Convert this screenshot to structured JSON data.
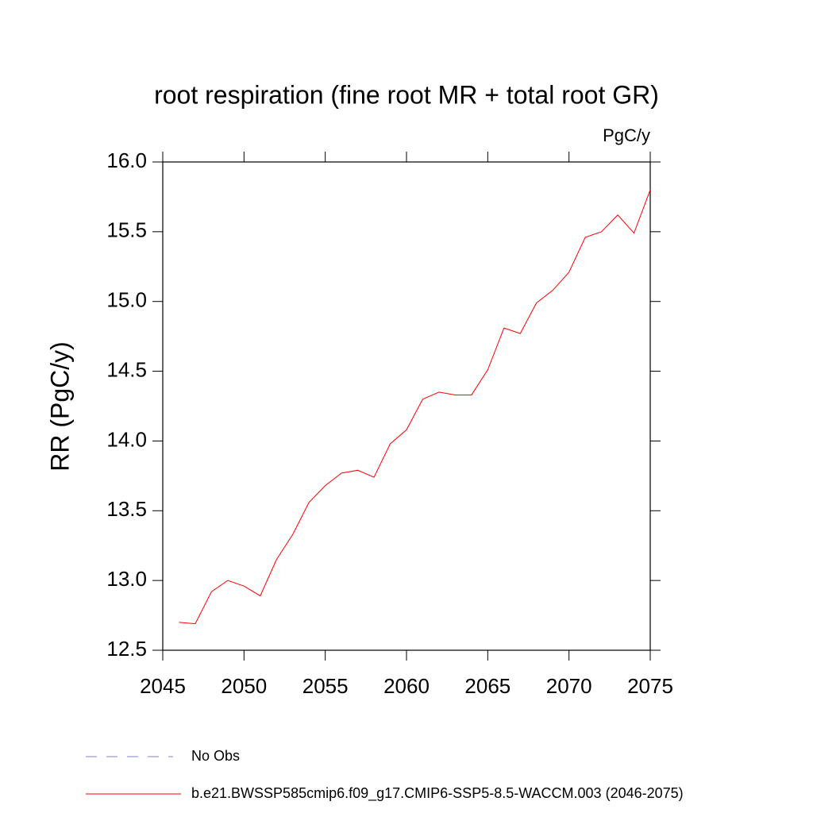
{
  "chart_data": {
    "type": "line",
    "title": "root respiration (fine root MR + total root GR)",
    "units": "PgC/y",
    "y_label": "RR  (PgC/y)",
    "x": [
      2046,
      2047,
      2048,
      2049,
      2050,
      2051,
      2052,
      2053,
      2054,
      2055,
      2056,
      2057,
      2058,
      2059,
      2060,
      2061,
      2062,
      2063,
      2064,
      2065,
      2066,
      2067,
      2068,
      2069,
      2070,
      2071,
      2072,
      2073,
      2074,
      2075
    ],
    "series": [
      {
        "name": "b.e21.BWSSP585cmip6.f09_g17.CMIP6-SSP5-8.5-WACCM.003 (2046-2075)",
        "color": "#ff0000",
        "values": [
          12.7,
          12.69,
          12.92,
          13.0,
          12.96,
          12.89,
          13.15,
          13.33,
          13.56,
          13.68,
          13.77,
          13.79,
          13.74,
          13.98,
          14.08,
          14.3,
          14.35,
          14.33,
          14.33,
          14.51,
          14.81,
          14.77,
          14.99,
          15.08,
          15.21,
          15.46,
          15.5,
          15.62,
          15.49,
          15.8
        ]
      }
    ],
    "reference_legend": {
      "name": "No Obs",
      "color": "#8080c0",
      "dashed": true
    },
    "xlim": [
      2045,
      2075
    ],
    "xticks": [
      2045,
      2050,
      2055,
      2060,
      2065,
      2070,
      2075
    ],
    "ylim": [
      12.5,
      16.0
    ],
    "yticks": [
      12.5,
      {
        "value": 13,
        "label": "13.0"
      },
      13.5,
      {
        "value": 14,
        "label": "14.0"
      },
      14.5,
      {
        "value": 15,
        "label": "15.0"
      },
      15.5,
      {
        "value": 16,
        "label": "16.0"
      }
    ],
    "grid": false
  }
}
